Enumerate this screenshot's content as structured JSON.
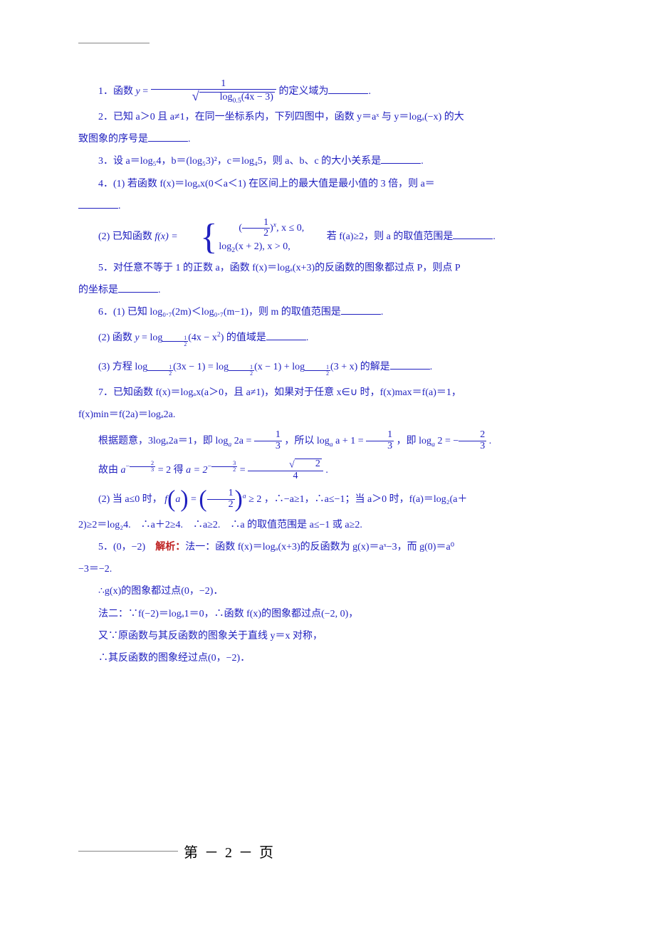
{
  "doc": {
    "text_color": "#2020bf",
    "bg_color": "#ffffff",
    "rule_color": "#868686",
    "highlight_color": "#be2020"
  },
  "q1": {
    "prefix": "1．函数 ",
    "eq_lhs_y": "y",
    "eq_eq": " = ",
    "numerator": "1",
    "rad_fn": "log",
    "rad_base": "0.5",
    "rad_arg": "(4x − 3)",
    "suffix": " 的定义域为",
    "period": "."
  },
  "q2": {
    "line1": "2．已知 a＞0 且 a≠1，在同一坐标系内，下列四图中，函数 y＝aˣ 与 y＝logₐ(−x) 的大",
    "line2_prefix": "致图象的序号是",
    "line2_period": "."
  },
  "q3": {
    "text_pre": "3．设 a＝log₅4，b＝(log₅3)²，c＝log₄5，则 a、b、c 的大小关系是",
    "period": "."
  },
  "q4_1": {
    "line1": "4．(1) 若函数 f(x)＝logₐx(0＜a＜1) 在区间上的最大值是最小值的 3 倍，则 a＝",
    "line2_end": "."
  },
  "q4_2": {
    "prefix": "(2) 已知函数 ",
    "fx": "f(x) = ",
    "p1_a": "(",
    "p1_frac_n": "1",
    "p1_frac_d": "2",
    "p1_b": ")",
    "p1_exp": "x",
    "p1_tail": ", x ≤ 0,",
    "p2": "log",
    "p2_base": "2",
    "p2_arg": "(x + 2), x > 0,",
    "mid": "　　若 f(a)≥2，则 a 的取值范围是",
    "end": "."
  },
  "q5": {
    "line1": "5．对任意不等于 1 的正数 a，函数 f(x)＝logₐ(x+3)的反函数的图象都过点 P，则点 P",
    "line2_prefix": "的坐标是",
    "line2_end": "."
  },
  "q6_1": {
    "text": "6．(1) 已知 log₀.₇(2m)＜log₀.₇(m−1)，则 m 的取值范围是",
    "end": "."
  },
  "q6_2": {
    "prefix": "(2) 函数 ",
    "y": "y",
    "eq": " = ",
    "fn": "log",
    "base_n": "1",
    "base_d": "2",
    "arg": "(4x − x",
    "arg_sup": "2",
    "arg_close": ")",
    "suffix": " 的值域是",
    "end": "."
  },
  "q6_3": {
    "prefix": "(3) 方程 ",
    "t1_fn": "log",
    "t1_base_n": "1",
    "t1_base_d": "2",
    "t1_arg": "(3x − 1)",
    "eq": " = ",
    "t2_fn": "log",
    "t2_base_n": "1",
    "t2_base_d": "2",
    "t2_arg": "(x − 1)",
    "plus": " + ",
    "t3_fn": "log",
    "t3_base_n": "1",
    "t3_base_d": "2",
    "t3_arg": "(3 + x)",
    "suffix": " 的解是",
    "end": "."
  },
  "q7_a": "7．已知函数 f(x)＝logₐx(a＞0，且 a≠1)，如果对于任意 x∈∪ 时，f(x)max＝f(a)＝1，",
  "q7_b": "f(x)min＝f(2a)＝logₐ2a.",
  "s7_c_pre": "根据题意，3logₐ2a＝1，即 ",
  "s7_c_eq1_l": "log",
  "s7_c_eq1_base": "a",
  "s7_c_eq1_arg": " 2a",
  "s7_c_eq1_eq": " = ",
  "s7_c_eq1_rn": "1",
  "s7_c_eq1_rd": "3",
  "s7_c_mid1": " ，所以 ",
  "s7_c_eq2_l": "log",
  "s7_c_eq2_base": "a",
  "s7_c_eq2_arg": " a + 1",
  "s7_c_eq2_eq": " = ",
  "s7_c_eq2_rn": "1",
  "s7_c_eq2_rd": "3",
  "s7_c_mid2": " ，即 ",
  "s7_c_eq3_l": "log",
  "s7_c_eq3_base": "a",
  "s7_c_eq3_arg": " 2",
  "s7_c_eq3_eq": " = −",
  "s7_c_eq3_rn": "2",
  "s7_c_eq3_rd": "3",
  "s7_c_end": " .",
  "s7_d_pre": "故由 ",
  "s7_d_a": "a",
  "s7_d_expAn": "2",
  "s7_d_expAd": "3",
  "s7_d_expA_sign": "−",
  "s7_d_eq1": " = 2",
  "s7_d_mid": " 得 ",
  "s7_d_a2": "a = 2",
  "s7_d_expBn": "3",
  "s7_d_expBd": "2",
  "s7_d_expB_sign": "−",
  "s7_d_eq2": " = ",
  "s7_d_rn": "2",
  "s7_d_rd": "4",
  "s7_d_end": " .",
  "s4_2a_pre": "(2) 当 a≤0 时，",
  "s4_2a_f": "f",
  "s4_2a_paren": "a",
  "s4_2a_eq": " = ",
  "s4_2a_fn": "1",
  "s4_2a_fd": "2",
  "s4_2a_exp": "a",
  "s4_2a_ge": " ≥ 2",
  "s4_2a_mid": "，∴−a≥1，∴a≤−1；当 a＞0 时，f(a)＝log₂(a＋",
  "s4_2b": "2)≥2＝log₂4.　∴a＋2≥4.　∴a≥2.　∴a 的取值范围是 a≤−1 或 a≥2.",
  "s5a_pre": "5．(0，−2)　",
  "s5a_label": "解析：",
  "s5a_body": "法一：函数 f(x)＝logₐ(x+3)的反函数为 g(x)＝aˣ−3，而 g(0)＝a⁰",
  "s5b": "−3＝−2.",
  "s5c": "∴g(x)的图象都过点(0，−2)．",
  "s5d": "法二：∵f(−2)＝logₐ1＝0，∴函数 f(x)的图象都过点(−2, 0)，",
  "s5e": "又∵原函数与其反函数的图象关于直线 y＝x 对称，",
  "s5f": "∴其反函数的图象经过点(0，−2)．",
  "footer": "第 － 2 － 页"
}
